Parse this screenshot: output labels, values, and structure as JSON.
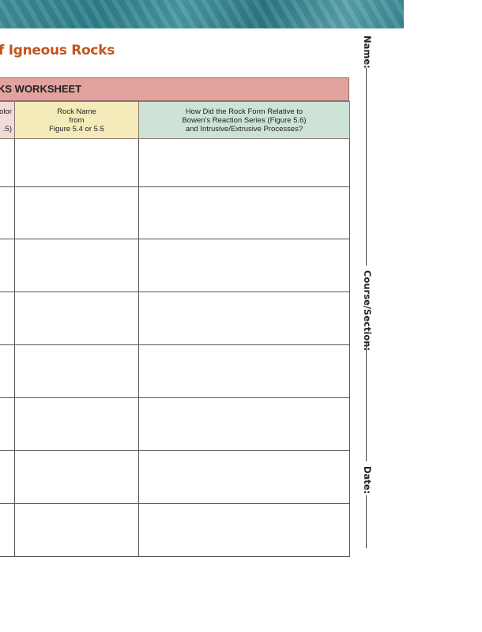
{
  "title": "f Igneous Rocks",
  "worksheet": {
    "header": "KS WORKSHEET",
    "columns": [
      {
        "lines": [
          "olor",
          "",
          ".5)"
        ]
      },
      {
        "lines": [
          "Rock Name",
          "from",
          "Figure 5.4 or 5.5"
        ]
      },
      {
        "lines": [
          "How Did the Rock Form Relative to",
          "Bowen's Reaction Series (Figure 5.6)",
          "and Intrusive/Extrusive Processes?"
        ]
      }
    ],
    "row_count": 8
  },
  "side_fields": {
    "name": "Name:",
    "course": "Course/Section:",
    "date": "Date:"
  },
  "colors": {
    "title": "#c0561c",
    "header": "#e2a39f",
    "col1": "#f1dad7",
    "col2": "#f3ebb9",
    "col3": "#cde3d6",
    "banner": "#3f8e98"
  }
}
